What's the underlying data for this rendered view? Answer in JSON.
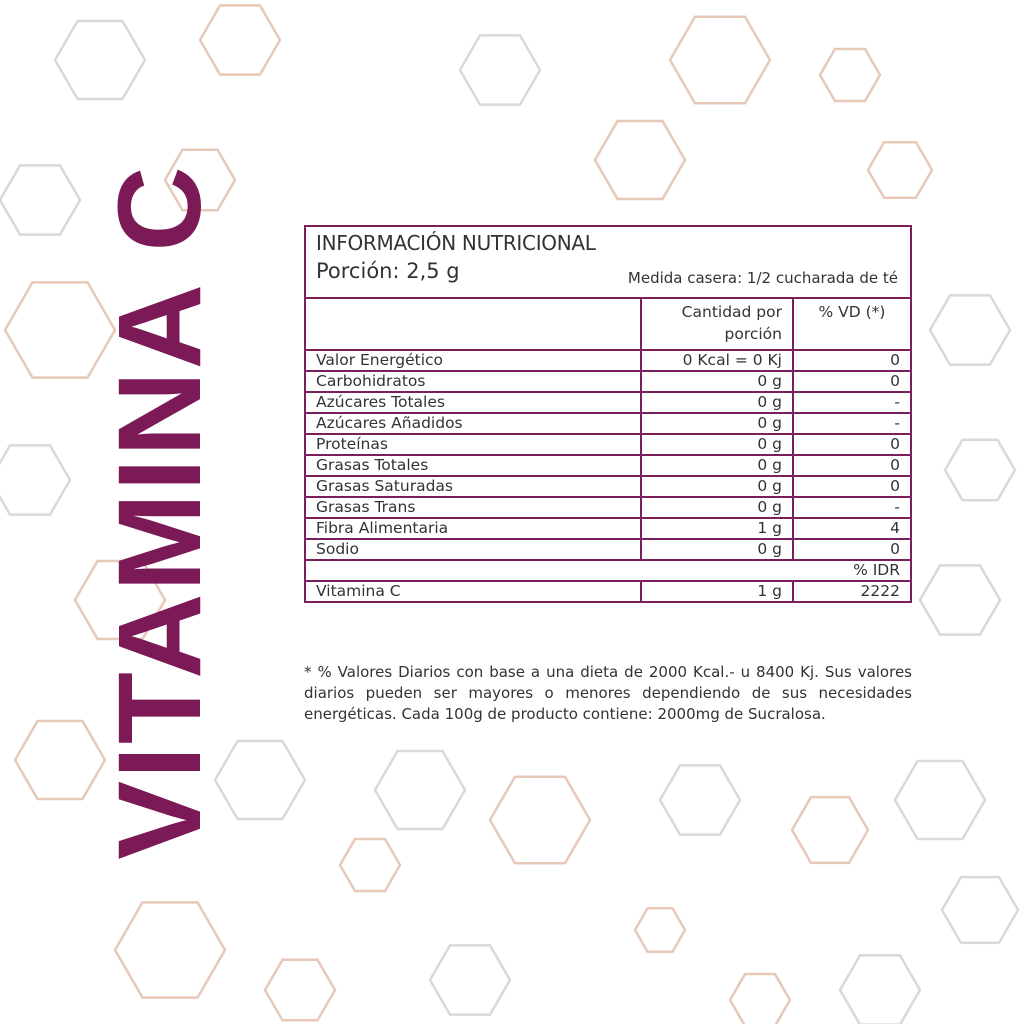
{
  "side_title": "VITAMINA C",
  "colors": {
    "brand": "#7b1a57",
    "hex_gray": "#d9d9d9",
    "hex_pink": "#e8c8b8"
  },
  "label": {
    "title": "INFORMACIÓN NUTRICIONAL",
    "portion": "Porción: 2,5 g",
    "household": "Medida casera: 1/2 cucharada de té",
    "col_amount": "Cantidad por porción",
    "col_vd": "% VD (*)",
    "rows": [
      {
        "name": "Valor Energético",
        "amount": "0 Kcal = 0 Kj",
        "vd": "0"
      },
      {
        "name": "Carbohidratos",
        "amount": "0 g",
        "vd": "0"
      },
      {
        "name": "Azúcares Totales",
        "amount": "0 g",
        "vd": "-"
      },
      {
        "name": "Azúcares Añadidos",
        "amount": "0 g",
        "vd": "-"
      },
      {
        "name": "Proteínas",
        "amount": "0 g",
        "vd": "0"
      },
      {
        "name": "Grasas Totales",
        "amount": "0 g",
        "vd": "0"
      },
      {
        "name": "Grasas Saturadas",
        "amount": "0 g",
        "vd": "0"
      },
      {
        "name": "Grasas Trans",
        "amount": "0 g",
        "vd": "-"
      },
      {
        "name": "Fibra Alimentaria",
        "amount": "1 g",
        "vd": "4"
      },
      {
        "name": "Sodio",
        "amount": "0 g",
        "vd": "0"
      }
    ],
    "idr_header": "% IDR",
    "vitamin": {
      "name": "Vitamina C",
      "amount": "1 g",
      "idr": "2222"
    }
  },
  "footnote": "* % Valores Diarios con base a una dieta de 2000 Kcal.- u 8400 Kj. Sus valores diarios pueden ser mayores o menores dependiendo de sus necesidades energéticas. Cada 100g de producto contiene: 2000mg de Sucralosa."
}
